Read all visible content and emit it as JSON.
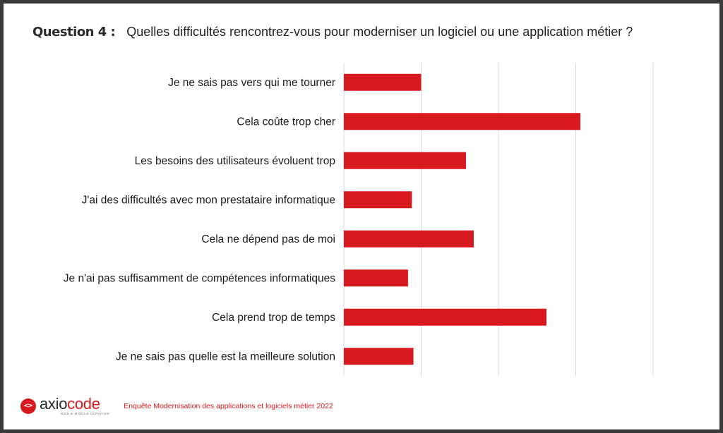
{
  "header": {
    "question_label": "Question 4 :",
    "question_text": "Quelles difficultés rencontrez-vous pour moderniser un logiciel ou une application métier ?"
  },
  "chart_data": {
    "type": "bar",
    "orientation": "horizontal",
    "categories": [
      "Je ne sais pas vers qui me tourner",
      "Cela coûte trop cher",
      "Les besoins des utilisateurs évoluent trop",
      "J'ai des difficultés avec mon prestataire informatique",
      "Cela ne dépend pas de moi",
      "Je n'ai pas suffisamment de compétences informatiques",
      "Cela prend trop de temps",
      "Je ne sais pas quelle est la meilleure solution"
    ],
    "values": [
      1.0,
      3.06,
      1.58,
      0.88,
      1.68,
      0.83,
      2.62,
      0.9
    ],
    "xlim": [
      0,
      4
    ],
    "grid": true,
    "bar_color": "#d71920",
    "title": "",
    "xlabel": "",
    "ylabel": ""
  },
  "footer": {
    "logo_prefix": "axio",
    "logo_accent": "code",
    "logo_tagline": "WEB & MOBILE SERVICES",
    "logo_icon": "code-brackets-icon",
    "caption": "Enquête Modernisation des applications et logiciels métier 2022"
  },
  "colors": {
    "accent": "#d71920",
    "frame": "#3a3a3a",
    "grid": "#d9d9d9"
  }
}
